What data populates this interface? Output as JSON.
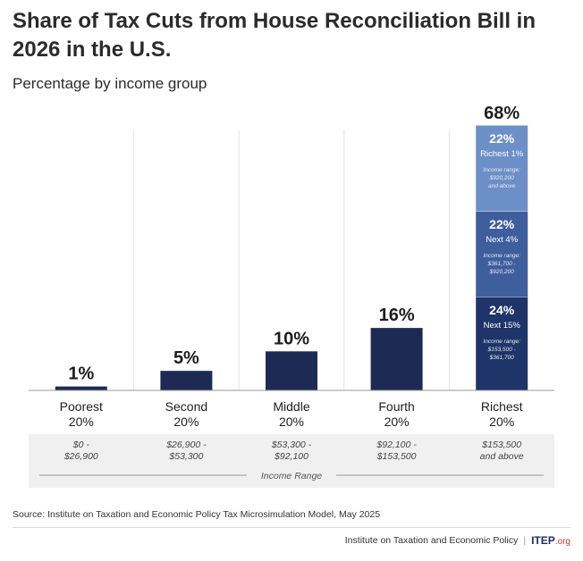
{
  "title": "Share of Tax Cuts from House Reconciliation Bill in 2026 in the U.S.",
  "subtitle": "Percentage by income group",
  "chart_data": {
    "type": "bar",
    "categories": [
      "Poorest 20%",
      "Second 20%",
      "Middle 20%",
      "Fourth 20%",
      "Richest 20%"
    ],
    "category_lines": [
      [
        "Poorest",
        "20%"
      ],
      [
        "Second",
        "20%"
      ],
      [
        "Middle",
        "20%"
      ],
      [
        "Fourth",
        "20%"
      ],
      [
        "Richest",
        "20%"
      ]
    ],
    "values": [
      1,
      5,
      10,
      16,
      68
    ],
    "value_labels": [
      "1%",
      "5%",
      "10%",
      "16%",
      "68%"
    ],
    "ylim": [
      0,
      68
    ],
    "income_ranges": [
      [
        "$0 -",
        "$26,900"
      ],
      [
        "$26,900 -",
        "$53,300"
      ],
      [
        "$53,300 -",
        "$92,100"
      ],
      [
        "$92,100 -",
        "$153,500"
      ],
      [
        "$153,500",
        "and above"
      ]
    ],
    "income_range_label": "Income Range",
    "richest_breakdown": [
      {
        "value": 24,
        "label": "24%",
        "name": "Next 15%",
        "range_lines": [
          "Income range:",
          "$153,500 -",
          "$361,700"
        ],
        "color": "#1f3468"
      },
      {
        "value": 22,
        "label": "22%",
        "name": "Next 4%",
        "range_lines": [
          "Income range:",
          "$361,700 -",
          "$920,200"
        ],
        "color": "#3e5e9c"
      },
      {
        "value": 22,
        "label": "22%",
        "name": "Richest 1%",
        "range_lines": [
          "Income range:",
          "$920,200",
          "and above"
        ],
        "color": "#6d8fc7"
      }
    ],
    "bar_color": "#1d2b54",
    "grid": true
  },
  "source": "Source: Institute on Taxation and Economic Policy Tax Microsimulation Model, May 2025",
  "footer": {
    "org": "Institute on Taxation and Economic Policy",
    "logo_main": "ITEP",
    "logo_suffix": ".org"
  }
}
